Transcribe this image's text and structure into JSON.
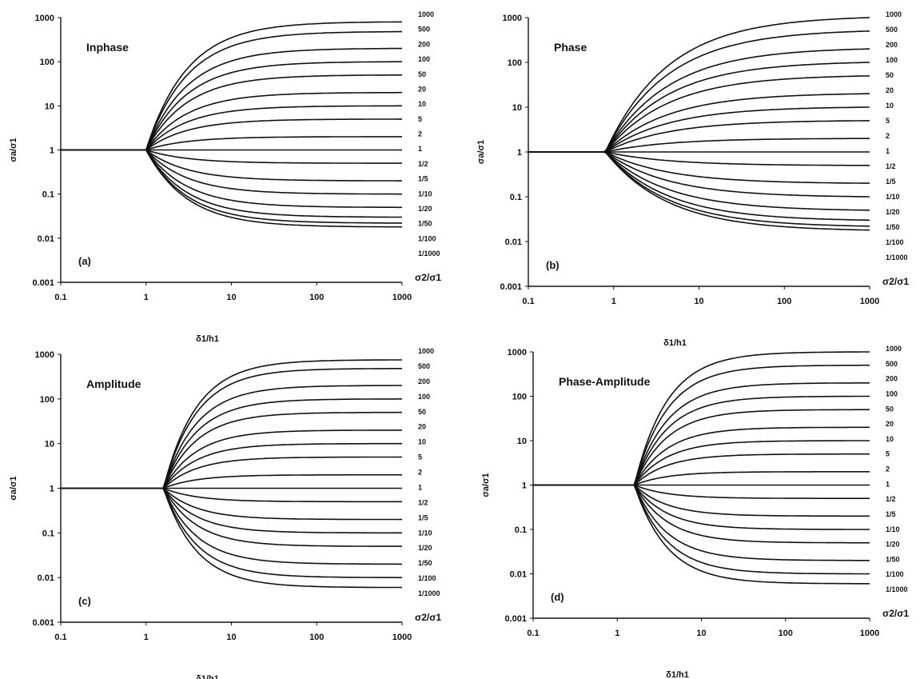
{
  "chart_data": [
    {
      "type": "line",
      "title": "Inphase",
      "panel_label": "(a)",
      "ylabel": "σa/σ1",
      "xlabel": "δ1/h1",
      "xscale": "log",
      "yscale": "log",
      "xlim": [
        0.1,
        1000
      ],
      "ylim": [
        0.001,
        1000
      ],
      "xticks": [
        "0.1",
        "1",
        "10",
        "100",
        "1000"
      ],
      "yticks": [
        "0.001",
        "0.01",
        "0.1",
        "1",
        "10",
        "100",
        "1000"
      ],
      "transition": [
        1.0,
        2.0
      ],
      "curve_labels": [
        "1000",
        "500",
        "200",
        "100",
        "50",
        "20",
        "10",
        "5",
        "2",
        "1",
        "1/2",
        "1/5",
        "1/10",
        "1/20",
        "1/50",
        "1/100",
        "1/1000"
      ],
      "ratio_label": "σ2/σ1",
      "series": [
        {
          "name": "1000",
          "values_at_x1000": 800
        },
        {
          "name": "500",
          "values_at_x1000": 480
        },
        {
          "name": "200",
          "values_at_x1000": 200
        },
        {
          "name": "100",
          "values_at_x1000": 100
        },
        {
          "name": "50",
          "values_at_x1000": 50
        },
        {
          "name": "20",
          "values_at_x1000": 20
        },
        {
          "name": "10",
          "values_at_x1000": 10
        },
        {
          "name": "5",
          "values_at_x1000": 5
        },
        {
          "name": "2",
          "values_at_x1000": 2
        },
        {
          "name": "1",
          "values_at_x1000": 1
        },
        {
          "name": "1/2",
          "values_at_x1000": 0.5
        },
        {
          "name": "1/5",
          "values_at_x1000": 0.2
        },
        {
          "name": "1/10",
          "values_at_x1000": 0.1
        },
        {
          "name": "1/20",
          "values_at_x1000": 0.05
        },
        {
          "name": "1/50",
          "values_at_x1000": 0.03
        },
        {
          "name": "1/100",
          "values_at_x1000": 0.022
        },
        {
          "name": "1/1000",
          "values_at_x1000": 0.018
        }
      ]
    },
    {
      "type": "line",
      "title": "Phase",
      "panel_label": "(b)",
      "ylabel": "σa/σ1",
      "xlabel": "δ1/h1",
      "xscale": "log",
      "yscale": "log",
      "xlim": [
        0.1,
        1000
      ],
      "ylim": [
        0.001,
        1000
      ],
      "xticks": [
        "0.1",
        "1",
        "10",
        "100",
        "1000"
      ],
      "yticks": [
        "0.001",
        "0.01",
        "0.1",
        "1",
        "10",
        "100",
        "1000"
      ],
      "transition": [
        0.8,
        2.3
      ],
      "curve_labels": [
        "1000",
        "500",
        "200",
        "100",
        "50",
        "20",
        "10",
        "5",
        "2",
        "1",
        "1/2",
        "1/5",
        "1/10",
        "1/20",
        "1/50",
        "1/100",
        "1/1000"
      ],
      "ratio_label": "σ2/σ1",
      "series": [
        {
          "name": "1000",
          "values_at_x1000": 1000
        },
        {
          "name": "500",
          "values_at_x1000": 500
        },
        {
          "name": "200",
          "values_at_x1000": 200
        },
        {
          "name": "100",
          "values_at_x1000": 100
        },
        {
          "name": "50",
          "values_at_x1000": 50
        },
        {
          "name": "20",
          "values_at_x1000": 20
        },
        {
          "name": "10",
          "values_at_x1000": 10
        },
        {
          "name": "5",
          "values_at_x1000": 5
        },
        {
          "name": "2",
          "values_at_x1000": 2
        },
        {
          "name": "1",
          "values_at_x1000": 1
        },
        {
          "name": "1/2",
          "values_at_x1000": 0.5
        },
        {
          "name": "1/5",
          "values_at_x1000": 0.2
        },
        {
          "name": "1/10",
          "values_at_x1000": 0.1
        },
        {
          "name": "1/20",
          "values_at_x1000": 0.05
        },
        {
          "name": "1/50",
          "values_at_x1000": 0.03
        },
        {
          "name": "1/100",
          "values_at_x1000": 0.022
        },
        {
          "name": "1/1000",
          "values_at_x1000": 0.018
        }
      ]
    },
    {
      "type": "line",
      "title": "Amplitude",
      "panel_label": "(c)",
      "ylabel": "σa/σ1",
      "xlabel": "δ1/h1",
      "xscale": "log",
      "yscale": "log",
      "xlim": [
        0.1,
        1000
      ],
      "ylim": [
        0.001,
        1000
      ],
      "xticks": [
        "0.1",
        "1",
        "10",
        "100",
        "1000"
      ],
      "yticks": [
        "0.001",
        "0.01",
        "0.1",
        "1",
        "10",
        "100",
        "1000"
      ],
      "transition": [
        1.6,
        2.8
      ],
      "curve_labels": [
        "1000",
        "500",
        "200",
        "100",
        "50",
        "20",
        "10",
        "5",
        "2",
        "1",
        "1/2",
        "1/5",
        "1/10",
        "1/20",
        "1/50",
        "1/100",
        "1/1000"
      ],
      "ratio_label": "σ2/σ1",
      "series": [
        {
          "name": "1000",
          "values_at_x1000": 750
        },
        {
          "name": "500",
          "values_at_x1000": 480
        },
        {
          "name": "200",
          "values_at_x1000": 200
        },
        {
          "name": "100",
          "values_at_x1000": 100
        },
        {
          "name": "50",
          "values_at_x1000": 50
        },
        {
          "name": "20",
          "values_at_x1000": 20
        },
        {
          "name": "10",
          "values_at_x1000": 10
        },
        {
          "name": "5",
          "values_at_x1000": 5
        },
        {
          "name": "2",
          "values_at_x1000": 2
        },
        {
          "name": "1",
          "values_at_x1000": 1
        },
        {
          "name": "1/2",
          "values_at_x1000": 0.5
        },
        {
          "name": "1/5",
          "values_at_x1000": 0.2
        },
        {
          "name": "1/10",
          "values_at_x1000": 0.1
        },
        {
          "name": "1/20",
          "values_at_x1000": 0.05
        },
        {
          "name": "1/50",
          "values_at_x1000": 0.02
        },
        {
          "name": "1/100",
          "values_at_x1000": 0.01
        },
        {
          "name": "1/1000",
          "values_at_x1000": 0.006
        }
      ]
    },
    {
      "type": "line",
      "title": "Phase-Amplitude",
      "panel_label": "(d)",
      "ylabel": "σa/σ1",
      "xlabel": "δ1/h1",
      "xscale": "log",
      "yscale": "log",
      "xlim": [
        0.1,
        1000
      ],
      "ylim": [
        0.001,
        1000
      ],
      "xticks": [
        "0.1",
        "1",
        "10",
        "100",
        "1000"
      ],
      "yticks": [
        "0.001",
        "0.01",
        "0.1",
        "1",
        "10",
        "100",
        "1000"
      ],
      "transition": [
        1.6,
        2.8
      ],
      "curve_labels": [
        "1000",
        "500",
        "200",
        "100",
        "50",
        "20",
        "10",
        "5",
        "2",
        "1",
        "1/2",
        "1/5",
        "1/10",
        "1/20",
        "1/50",
        "1/100",
        "1/1000"
      ],
      "ratio_label": "σ2/σ1",
      "series": [
        {
          "name": "1000",
          "values_at_x1000": 1000
        },
        {
          "name": "500",
          "values_at_x1000": 500
        },
        {
          "name": "200",
          "values_at_x1000": 200
        },
        {
          "name": "100",
          "values_at_x1000": 100
        },
        {
          "name": "50",
          "values_at_x1000": 50
        },
        {
          "name": "20",
          "values_at_x1000": 20
        },
        {
          "name": "10",
          "values_at_x1000": 10
        },
        {
          "name": "5",
          "values_at_x1000": 5
        },
        {
          "name": "2",
          "values_at_x1000": 2
        },
        {
          "name": "1",
          "values_at_x1000": 1
        },
        {
          "name": "1/2",
          "values_at_x1000": 0.5
        },
        {
          "name": "1/5",
          "values_at_x1000": 0.2
        },
        {
          "name": "1/10",
          "values_at_x1000": 0.1
        },
        {
          "name": "1/20",
          "values_at_x1000": 0.05
        },
        {
          "name": "1/50",
          "values_at_x1000": 0.02
        },
        {
          "name": "1/100",
          "values_at_x1000": 0.01
        },
        {
          "name": "1/1000",
          "values_at_x1000": 0.006
        }
      ]
    }
  ]
}
